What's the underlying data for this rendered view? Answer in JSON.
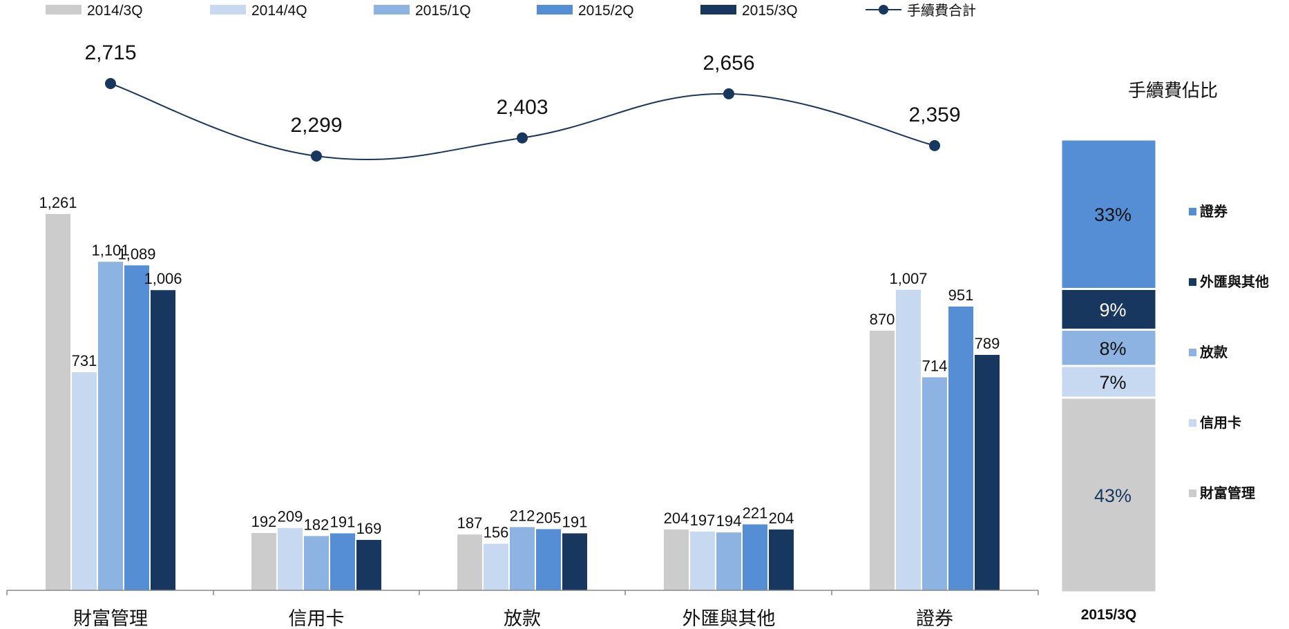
{
  "chart_data": [
    {
      "type": "bar",
      "categories": [
        "財富管理",
        "信用卡",
        "放款",
        "外匯與其他",
        "證券"
      ],
      "series": [
        {
          "name": "2014/3Q",
          "color": "#cccccc",
          "values": [
            1261,
            192,
            187,
            204,
            870
          ]
        },
        {
          "name": "2014/4Q",
          "color": "#c6d9f1",
          "values": [
            731,
            209,
            156,
            197,
            1007
          ]
        },
        {
          "name": "2015/1Q",
          "color": "#8db3e2",
          "values": [
            1101,
            182,
            212,
            194,
            714
          ]
        },
        {
          "name": "2015/2Q",
          "color": "#558ed5",
          "values": [
            1089,
            191,
            205,
            221,
            951
          ]
        },
        {
          "name": "2015/3Q",
          "color": "#17375e",
          "values": [
            1006,
            169,
            191,
            204,
            789
          ]
        }
      ],
      "value_labels": [
        [
          "1,261",
          "731",
          "1,101",
          "1,089",
          "1,006"
        ],
        [
          "192",
          "209",
          "182",
          "191",
          "169"
        ],
        [
          "187",
          "156",
          "212",
          "205",
          "191"
        ],
        [
          "204",
          "197",
          "194",
          "221",
          "204"
        ],
        [
          "870",
          "1,007",
          "714",
          "951",
          "789"
        ]
      ],
      "line": {
        "name": "手續費合計",
        "color": "#17375e",
        "values": [
          2715,
          2299,
          2403,
          2656,
          2359
        ],
        "labels": [
          "2,715",
          "2,299",
          "2,403",
          "2,656",
          "2,359"
        ]
      },
      "legend": [
        "2014/3Q",
        "2014/4Q",
        "2015/1Q",
        "2015/2Q",
        "2015/3Q",
        "手續費合計"
      ],
      "legend_position": "top",
      "ylim": [
        0,
        1300
      ],
      "grid": false
    },
    {
      "type": "bar",
      "stacked": true,
      "title": "手續費佔比",
      "categories": [
        "2015/3Q"
      ],
      "segments": [
        {
          "name": "財富管理",
          "value": 43,
          "label": "43%",
          "color": "#cccccc",
          "text_color": "#17375e"
        },
        {
          "name": "信用卡",
          "value": 7,
          "label": "7%",
          "color": "#c6d9f1",
          "text_color": "#111111"
        },
        {
          "name": "放款",
          "value": 8,
          "label": "8%",
          "color": "#8db3e2",
          "text_color": "#111111"
        },
        {
          "name": "外匯與其他",
          "value": 9,
          "label": "9%",
          "color": "#17375e",
          "text_color": "#ffffff"
        },
        {
          "name": "證券",
          "value": 33,
          "label": "33%",
          "color": "#558ed5",
          "text_color": "#111111"
        }
      ],
      "legend": [
        "證券",
        "外匯與其他",
        "放款",
        "信用卡",
        "財富管理"
      ],
      "legend_position": "right"
    }
  ]
}
